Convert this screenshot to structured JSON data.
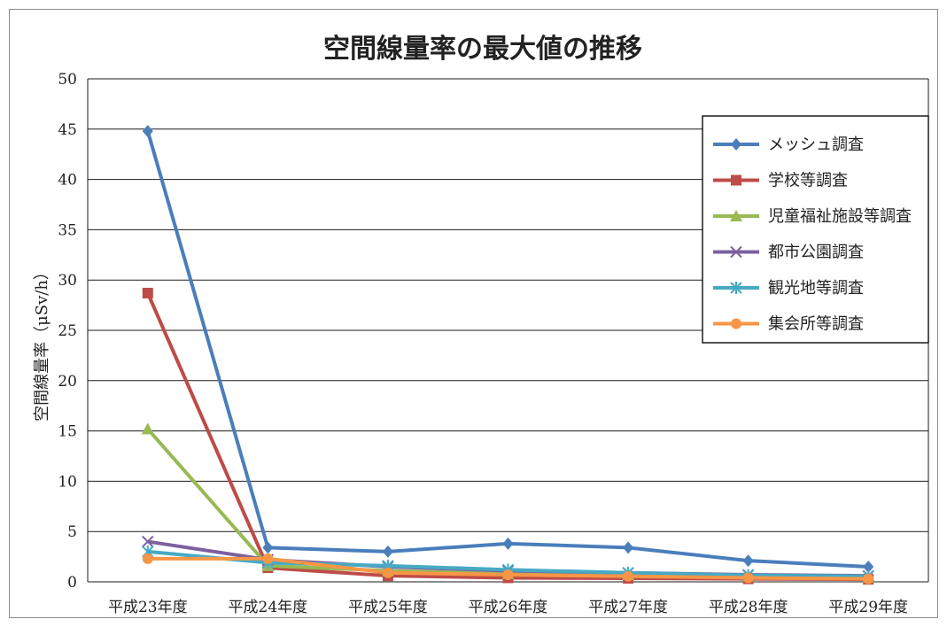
{
  "chart_data": {
    "type": "line",
    "title": "空間線量率の最大値の推移",
    "xlabel": "",
    "ylabel": "空間線量率（μSv/h）",
    "categories": [
      "平成23年度",
      "平成24年度",
      "平成25年度",
      "平成26年度",
      "平成27年度",
      "平成28年度",
      "平成29年度"
    ],
    "ylim": [
      0,
      50
    ],
    "yticks": [
      0,
      5,
      10,
      15,
      20,
      25,
      30,
      35,
      40,
      45,
      50
    ],
    "grid": true,
    "legend_position": "top-right",
    "series": [
      {
        "name": "メッシュ調査",
        "color": "#4a7ebb",
        "marker": "diamond",
        "values": [
          44.8,
          3.4,
          3.0,
          3.8,
          3.4,
          2.1,
          1.5
        ]
      },
      {
        "name": "学校等調査",
        "color": "#be4b48",
        "marker": "square",
        "values": [
          28.7,
          1.4,
          0.6,
          0.4,
          0.35,
          0.3,
          0.25
        ]
      },
      {
        "name": "児童福祉施設等調査",
        "color": "#98b954",
        "marker": "triangle",
        "values": [
          15.2,
          1.6,
          1.1,
          0.8,
          0.7,
          0.55,
          0.45
        ]
      },
      {
        "name": "都市公園調査",
        "color": "#7d60a0",
        "marker": "x",
        "values": [
          4.0,
          2.2,
          1.5,
          1.1,
          0.9,
          0.7,
          0.6
        ]
      },
      {
        "name": "観光地等調査",
        "color": "#46aac5",
        "marker": "asterisk",
        "values": [
          3.0,
          1.9,
          1.6,
          1.2,
          0.9,
          0.65,
          0.55
        ]
      },
      {
        "name": "集会所等調査",
        "color": "#f79646",
        "marker": "circle",
        "values": [
          2.3,
          2.3,
          0.9,
          0.7,
          0.55,
          0.4,
          0.3
        ]
      }
    ]
  }
}
